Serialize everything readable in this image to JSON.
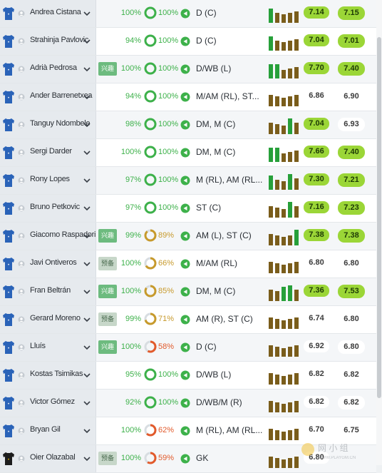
{
  "colors": {
    "rating_good": "#9bd637",
    "rating_neutral": "#ffffff",
    "high": "#3db14a",
    "mid": "#c79a2c",
    "low": "#e25a2b",
    "bar_green": "#27a03a",
    "bar_brown": "#7a5d1b"
  },
  "players": [
    {
      "name": "Andrea Cistana",
      "tag": "",
      "condition": "100%",
      "fitness": "100%",
      "fitness_level": "high",
      "position": "D (C)",
      "bars": [
        "g",
        "b",
        "b",
        "b",
        "b"
      ],
      "rating": "7.14",
      "rating_style": "good",
      "avg": "7.15",
      "avg_style": "good",
      "shirt": "blue"
    },
    {
      "name": "Strahinja Pavlovic",
      "tag": "",
      "condition": "94%",
      "fitness": "100%",
      "fitness_level": "high",
      "position": "D (C)",
      "bars": [
        "g",
        "b",
        "b",
        "b",
        "b"
      ],
      "rating": "7.04",
      "rating_style": "good",
      "avg": "7.01",
      "avg_style": "good",
      "shirt": "blue"
    },
    {
      "name": "Adrià Pedrosa",
      "tag": "兴趣",
      "tag_style": "g",
      "condition": "100%",
      "fitness": "100%",
      "fitness_level": "high",
      "position": "D/WB (L)",
      "bars": [
        "g",
        "g",
        "b",
        "b",
        "b"
      ],
      "rating": "7.70",
      "rating_style": "good",
      "avg": "7.40",
      "avg_style": "good",
      "shirt": "blue"
    },
    {
      "name": "Ander Barrenetxea",
      "tag": "",
      "condition": "94%",
      "fitness": "100%",
      "fitness_level": "high",
      "position": "M/AM (RL), ST...",
      "bars": [
        "b",
        "b",
        "b",
        "b",
        "b"
      ],
      "rating": "6.86",
      "rating_style": "neutral",
      "avg": "6.90",
      "avg_style": "neutral",
      "shirt": "blue"
    },
    {
      "name": "Tanguy Ndombele",
      "tag": "",
      "condition": "98%",
      "fitness": "100%",
      "fitness_level": "high",
      "position": "DM, M (C)",
      "bars": [
        "b",
        "b",
        "b",
        "g",
        "b"
      ],
      "rating": "7.04",
      "rating_style": "good",
      "avg": "6.93",
      "avg_style": "neutral",
      "shirt": "blue"
    },
    {
      "name": "Sergi Darder",
      "tag": "",
      "condition": "100%",
      "fitness": "100%",
      "fitness_level": "high",
      "position": "DM, M (C)",
      "bars": [
        "g",
        "g",
        "b",
        "b",
        "b"
      ],
      "rating": "7.66",
      "rating_style": "good",
      "avg": "7.40",
      "avg_style": "good",
      "shirt": "blue"
    },
    {
      "name": "Rony Lopes",
      "tag": "",
      "condition": "97%",
      "fitness": "100%",
      "fitness_level": "high",
      "position": "M (RL), AM (RL...",
      "bars": [
        "g",
        "b",
        "b",
        "g",
        "b"
      ],
      "rating": "7.30",
      "rating_style": "good",
      "avg": "7.21",
      "avg_style": "good",
      "shirt": "blue"
    },
    {
      "name": "Bruno Petkovic",
      "tag": "",
      "condition": "97%",
      "fitness": "100%",
      "fitness_level": "high",
      "position": "ST (C)",
      "bars": [
        "b",
        "b",
        "b",
        "g",
        "b"
      ],
      "rating": "7.16",
      "rating_style": "good",
      "avg": "7.23",
      "avg_style": "good",
      "shirt": "blue"
    },
    {
      "name": "Giacomo Raspadori",
      "tag": "兴趣",
      "tag_style": "g",
      "condition": "99%",
      "fitness": "89%",
      "fitness_level": "mid",
      "position": "AM (L), ST (C)",
      "bars": [
        "b",
        "b",
        "b",
        "b",
        "g"
      ],
      "rating": "7.38",
      "rating_style": "good",
      "avg": "7.38",
      "avg_style": "good",
      "shirt": "blue"
    },
    {
      "name": "Javi Ontiveros",
      "tag": "预备",
      "tag_style": "l",
      "condition": "100%",
      "fitness": "66%",
      "fitness_level": "mid",
      "position": "M/AM (RL)",
      "bars": [
        "b",
        "b",
        "b",
        "b",
        "b"
      ],
      "rating": "6.80",
      "rating_style": "neutral",
      "avg": "6.80",
      "avg_style": "neutral",
      "shirt": "blue"
    },
    {
      "name": "Fran Beltrán",
      "tag": "兴趣",
      "tag_style": "g",
      "condition": "100%",
      "fitness": "85%",
      "fitness_level": "mid",
      "position": "DM, M (C)",
      "bars": [
        "b",
        "b",
        "g",
        "g",
        "b"
      ],
      "rating": "7.36",
      "rating_style": "good",
      "avg": "7.53",
      "avg_style": "good",
      "shirt": "blue"
    },
    {
      "name": "Gerard Moreno",
      "tag": "预备",
      "tag_style": "l",
      "condition": "99%",
      "fitness": "71%",
      "fitness_level": "mid",
      "position": "AM (R), ST (C)",
      "bars": [
        "b",
        "b",
        "b",
        "b",
        "b"
      ],
      "rating": "6.74",
      "rating_style": "neutral",
      "avg": "6.80",
      "avg_style": "neutral",
      "shirt": "blue"
    },
    {
      "name": "Lluís",
      "tag": "兴趣",
      "tag_style": "g",
      "condition": "100%",
      "fitness": "58%",
      "fitness_level": "low",
      "position": "D (C)",
      "bars": [
        "b",
        "b",
        "b",
        "b",
        "b"
      ],
      "rating": "6.92",
      "rating_style": "neutral",
      "avg": "6.80",
      "avg_style": "neutral",
      "shirt": "blue"
    },
    {
      "name": "Kostas Tsimikas",
      "tag": "",
      "condition": "95%",
      "fitness": "100%",
      "fitness_level": "high",
      "position": "D/WB (L)",
      "bars": [
        "b",
        "b",
        "b",
        "b",
        "b"
      ],
      "rating": "6.82",
      "rating_style": "neutral",
      "avg": "6.82",
      "avg_style": "neutral",
      "shirt": "blue"
    },
    {
      "name": "Victor Gómez",
      "tag": "",
      "condition": "92%",
      "fitness": "100%",
      "fitness_level": "high",
      "position": "D/WB/M (R)",
      "bars": [
        "b",
        "b",
        "b",
        "b",
        "b"
      ],
      "rating": "6.82",
      "rating_style": "neutral",
      "avg": "6.82",
      "avg_style": "neutral",
      "shirt": "blue"
    },
    {
      "name": "Bryan Gil",
      "tag": "",
      "condition": "100%",
      "fitness": "62%",
      "fitness_level": "low",
      "position": "M (RL), AM (RL...",
      "bars": [
        "b",
        "b",
        "b",
        "b",
        "b"
      ],
      "rating": "6.70",
      "rating_style": "neutral",
      "avg": "6.75",
      "avg_style": "neutral",
      "shirt": "blue"
    },
    {
      "name": "Oier Olazabal",
      "tag": "预备",
      "tag_style": "l",
      "condition": "100%",
      "fitness": "59%",
      "fitness_level": "low",
      "position": "GK",
      "bars": [
        "b",
        "b",
        "b",
        "b",
        "b"
      ],
      "rating": "6.80",
      "rating_style": "neutral",
      "avg": "",
      "avg_style": "neutral",
      "shirt": "gk"
    }
  ]
}
